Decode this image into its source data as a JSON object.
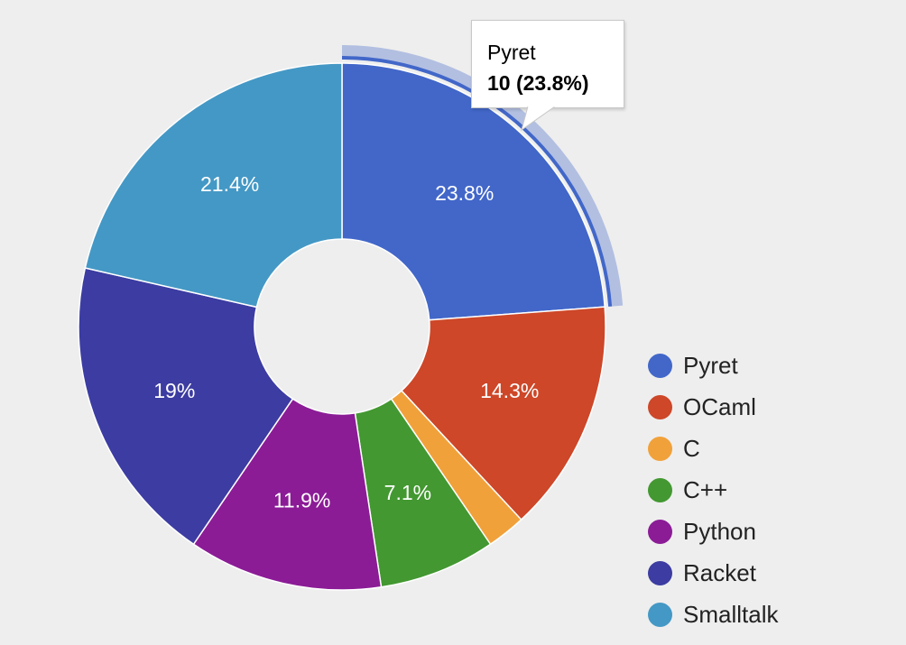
{
  "chart_data": {
    "type": "pie",
    "donut": true,
    "slices": [
      {
        "label": "Pyret",
        "value": 10,
        "percent_label": "23.8%",
        "color": "#4267c9"
      },
      {
        "label": "OCaml",
        "value": 6,
        "percent_label": "14.3%",
        "color": "#cd4728"
      },
      {
        "label": "C",
        "value": 1,
        "percent_label": "",
        "color": "#f1a13a"
      },
      {
        "label": "C++",
        "value": 3,
        "percent_label": "7.1%",
        "color": "#439831"
      },
      {
        "label": "Python",
        "value": 5,
        "percent_label": "11.9%",
        "color": "#8b1c96"
      },
      {
        "label": "Racket",
        "value": 8,
        "percent_label": "19%",
        "color": "#3c3ca2"
      },
      {
        "label": "Smalltalk",
        "value": 9,
        "percent_label": "21.4%",
        "color": "#4498c5"
      }
    ],
    "legend_position": "right",
    "highlighted_slice": "Pyret",
    "tooltip": {
      "title": "Pyret",
      "value": "10 (23.8%)"
    }
  }
}
